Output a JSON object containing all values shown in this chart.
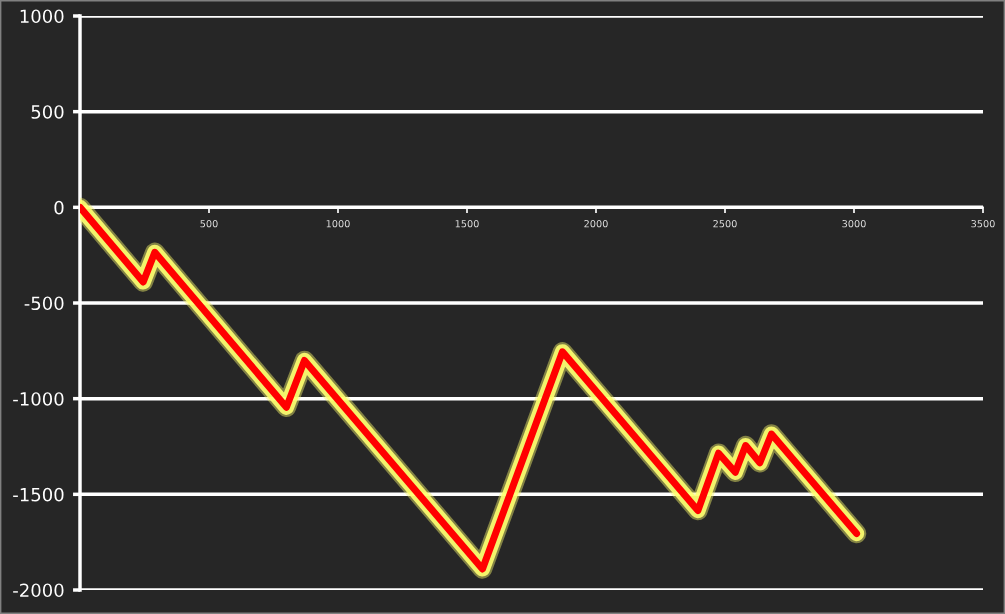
{
  "chart_data": {
    "type": "line",
    "x": [
      0,
      245,
      290,
      800,
      870,
      1560,
      1870,
      2395,
      2475,
      2540,
      2580,
      2635,
      2680,
      3010
    ],
    "series": [
      {
        "color": "#ff0000",
        "values": [
          0,
          -390,
          -235,
          -1045,
          -800,
          -1890,
          -755,
          -1585,
          -1285,
          -1385,
          -1245,
          -1335,
          -1185,
          -1705
        ]
      }
    ],
    "xlim": [
      0,
      3500
    ],
    "xticks": [
      {
        "value": 0,
        "label": null
      },
      500,
      1000,
      1500,
      2000,
      2500,
      3000,
      3500
    ],
    "ylim": [
      -2000,
      1000
    ],
    "yticks": [
      -2000,
      -1500,
      -1000,
      -500,
      0,
      500,
      1000
    ],
    "grid": "y",
    "line_style": "solid",
    "marker": "none"
  }
}
